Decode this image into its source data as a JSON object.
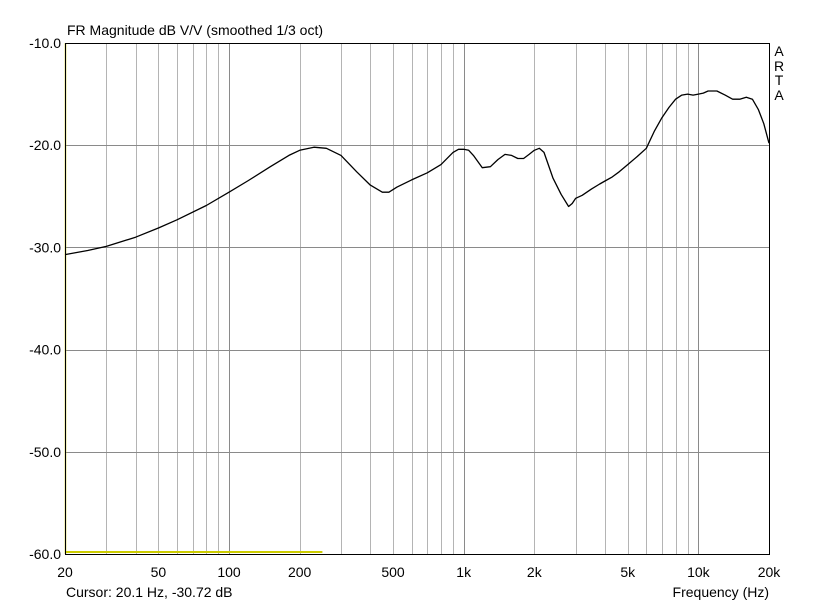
{
  "chart_data": {
    "type": "line",
    "title": "FR Magnitude dB V/V (smoothed 1/3 oct)",
    "xlabel": "Frequency (Hz)",
    "ylabel": "",
    "xscale": "log",
    "xlim": [
      20,
      20000
    ],
    "ylim": [
      -60,
      -10
    ],
    "grid": true,
    "x_tick_labels": [
      "20",
      "50",
      "100",
      "200",
      "500",
      "1k",
      "2k",
      "5k",
      "10k",
      "20k"
    ],
    "x_tick_values": [
      20,
      50,
      100,
      200,
      500,
      1000,
      2000,
      5000,
      10000,
      20000
    ],
    "y_tick_labels": [
      "-10.0",
      "-20.0",
      "-30.0",
      "-40.0",
      "-50.0",
      "-60.0"
    ],
    "y_tick_values": [
      -10,
      -20,
      -30,
      -40,
      -50,
      -60
    ],
    "series": [
      {
        "color": "#000000",
        "x": [
          20,
          25,
          30,
          40,
          50,
          60,
          80,
          100,
          120,
          150,
          180,
          200,
          230,
          260,
          300,
          350,
          400,
          450,
          480,
          520,
          600,
          700,
          800,
          900,
          950,
          1000,
          1050,
          1100,
          1200,
          1300,
          1400,
          1500,
          1600,
          1700,
          1800,
          1900,
          2000,
          2100,
          2200,
          2400,
          2600,
          2800,
          2900,
          3000,
          3200,
          3500,
          3800,
          4000,
          4300,
          4600,
          5000,
          5500,
          6000,
          6500,
          7000,
          7500,
          8000,
          8500,
          9000,
          9500,
          10000,
          10500,
          11000,
          12000,
          13000,
          14000,
          15000,
          16000,
          17000,
          18000,
          19000,
          20000
        ],
        "y": [
          -30.7,
          -30.3,
          -29.9,
          -29.0,
          -28.1,
          -27.3,
          -25.9,
          -24.6,
          -23.5,
          -22.1,
          -21.0,
          -20.5,
          -20.2,
          -20.3,
          -21.0,
          -22.6,
          -23.9,
          -24.6,
          -24.6,
          -24.1,
          -23.4,
          -22.7,
          -21.9,
          -20.7,
          -20.4,
          -20.4,
          -20.5,
          -21.0,
          -22.2,
          -22.1,
          -21.4,
          -20.9,
          -21.0,
          -21.3,
          -21.3,
          -20.9,
          -20.5,
          -20.3,
          -20.7,
          -23.2,
          -24.8,
          -26.0,
          -25.7,
          -25.2,
          -24.9,
          -24.3,
          -23.8,
          -23.5,
          -23.1,
          -22.6,
          -21.9,
          -21.1,
          -20.3,
          -18.6,
          -17.3,
          -16.3,
          -15.5,
          -15.1,
          -15.0,
          -15.1,
          -15.0,
          -14.9,
          -14.7,
          -14.7,
          -15.1,
          -15.5,
          -15.5,
          -15.3,
          -15.5,
          -16.5,
          -17.9,
          -19.8
        ]
      }
    ],
    "marker": {
      "color": "#cccc00",
      "x_range": [
        20,
        250
      ],
      "y": -59.8
    }
  },
  "cursor_readout": "Cursor: 20.1 Hz, -30.72 dB",
  "brand_letters": [
    "A",
    "R",
    "T",
    "A"
  ],
  "colors": {
    "background": "#ffffff",
    "grid": "#b4b4b4",
    "curve": "#000000",
    "cursor_line": "#cccc00"
  }
}
